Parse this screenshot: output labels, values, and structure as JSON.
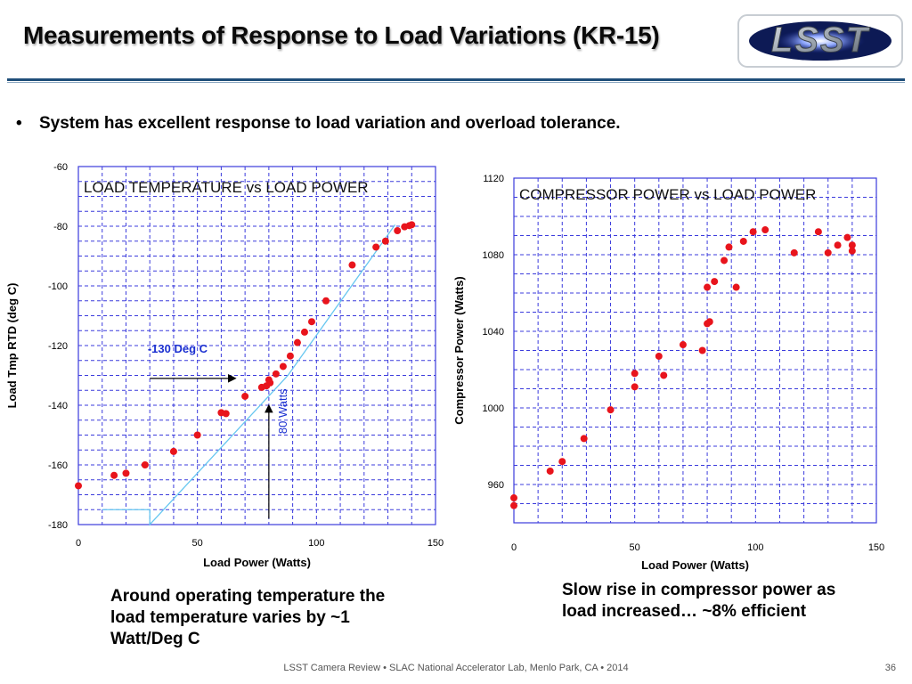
{
  "slide": {
    "title": "Measurements of Response to Load Variations (KR-15)",
    "bullet": "System has excellent response to load variation and overload tolerance.",
    "bullet_marker": "•",
    "caption_left": "Around operating temperature the load temperature varies by ~1 Watt/Deg C",
    "caption_right": "Slow rise in compressor power as load increased… ~8% efficient",
    "footer": "LSST Camera Review • SLAC National Accelerator Lab, Menlo Park, CA • 2014",
    "page_number": "36",
    "logo_text": "LSST",
    "colors": {
      "title_rule": "#1f4e79",
      "grid": "#3b3bdc",
      "points": "#e8141c",
      "fit": "#67c7f0"
    }
  },
  "chart_data": [
    {
      "type": "scatter",
      "title": "LOAD TEMPERATURE vs LOAD POWER",
      "xlabel": "Load Power (Watts)",
      "ylabel": "Load Tmp RTD (deg C)",
      "xlim": [
        0,
        150
      ],
      "ylim": [
        -180,
        -60
      ],
      "xticks": [
        0,
        50,
        100,
        150
      ],
      "yticks": [
        -60,
        -80,
        -100,
        -120,
        -140,
        -160,
        -180
      ],
      "grid": true,
      "points": [
        [
          0,
          -167
        ],
        [
          15,
          -163.5
        ],
        [
          20,
          -162.8
        ],
        [
          28,
          -160
        ],
        [
          40,
          -155.5
        ],
        [
          50,
          -150
        ],
        [
          60,
          -142.5
        ],
        [
          62,
          -142.8
        ],
        [
          70,
          -137
        ],
        [
          77,
          -134
        ],
        [
          79,
          -133.5
        ],
        [
          80,
          -131.5
        ],
        [
          80.5,
          -132.5
        ],
        [
          83,
          -129.5
        ],
        [
          86,
          -127
        ],
        [
          89,
          -123.5
        ],
        [
          92,
          -119
        ],
        [
          95,
          -115.5
        ],
        [
          98,
          -112
        ],
        [
          104,
          -105
        ],
        [
          115,
          -93
        ],
        [
          125,
          -87
        ],
        [
          129,
          -85
        ],
        [
          134,
          -81.5
        ],
        [
          137,
          -80.2
        ],
        [
          139,
          -79.8
        ],
        [
          140,
          -79.5
        ]
      ],
      "fit_line": [
        [
          10,
          -175
        ],
        [
          30,
          -175
        ],
        [
          30,
          -180
        ],
        [
          88,
          -130
        ],
        [
          133,
          -79.5
        ]
      ],
      "annotations": [
        {
          "text": "-130 Deg C",
          "at": [
            55,
            -123
          ],
          "arrow_to": [
            66,
            -130
          ]
        },
        {
          "text": "80 Watts",
          "at": [
            86,
            -142
          ],
          "arrow_to": [
            80,
            -140
          ]
        }
      ]
    },
    {
      "type": "scatter",
      "title": "COMPRESSOR POWER vs LOAD POWER",
      "xlabel": "Load Power (Watts)",
      "ylabel": "Compressor Power (Watts)",
      "xlim": [
        0,
        150
      ],
      "ylim": [
        940,
        1120
      ],
      "xticks": [
        0,
        50,
        100,
        150
      ],
      "yticks": [
        1120,
        1080,
        1040,
        1000,
        960
      ],
      "grid": true,
      "points": [
        [
          0,
          953
        ],
        [
          0,
          949
        ],
        [
          15,
          967
        ],
        [
          20,
          972
        ],
        [
          29,
          984
        ],
        [
          40,
          999
        ],
        [
          50,
          1011
        ],
        [
          50,
          1018
        ],
        [
          60,
          1027
        ],
        [
          62,
          1017
        ],
        [
          70,
          1033
        ],
        [
          78,
          1030
        ],
        [
          80,
          1044
        ],
        [
          81,
          1045
        ],
        [
          80,
          1063
        ],
        [
          83,
          1066
        ],
        [
          87,
          1077
        ],
        [
          89,
          1084
        ],
        [
          92,
          1063
        ],
        [
          95,
          1087
        ],
        [
          99,
          1092
        ],
        [
          104,
          1093
        ],
        [
          116,
          1081
        ],
        [
          126,
          1092
        ],
        [
          130,
          1081
        ],
        [
          134,
          1085
        ],
        [
          138,
          1089
        ],
        [
          140,
          1085
        ],
        [
          140,
          1082
        ]
      ]
    }
  ]
}
